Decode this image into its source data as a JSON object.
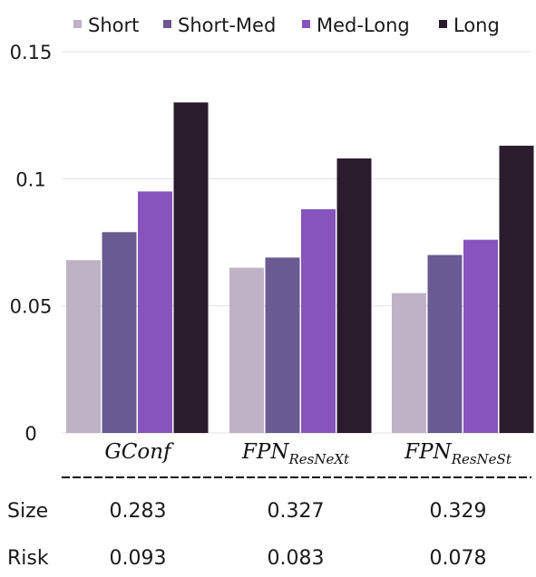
{
  "chart_data": {
    "type": "bar",
    "categories": [
      {
        "base": "GConf",
        "sub": ""
      },
      {
        "base": "FPN",
        "sub": "ResNeXt"
      },
      {
        "base": "FPN",
        "sub": "ResNeSt"
      }
    ],
    "series": [
      {
        "name": "Short",
        "color": "#c0b2c5",
        "values": [
          0.068,
          0.065,
          0.055
        ]
      },
      {
        "name": "Short-Med",
        "color": "#695b92",
        "values": [
          0.079,
          0.069,
          0.07
        ]
      },
      {
        "name": "Med-Long",
        "color": "#8754bd",
        "values": [
          0.095,
          0.088,
          0.076
        ]
      },
      {
        "name": "Long",
        "color": "#2a1b2d",
        "values": [
          0.13,
          0.108,
          0.113
        ]
      }
    ],
    "ylim": [
      0,
      0.15
    ],
    "yticks": [
      {
        "value": 0,
        "label": "0"
      },
      {
        "value": 0.05,
        "label": "0.05"
      },
      {
        "value": 0.1,
        "label": "0.1"
      },
      {
        "value": 0.15,
        "label": "0.15"
      }
    ],
    "legend_position": "top",
    "grid": true
  },
  "table": {
    "rows": [
      {
        "label": "Size",
        "values": [
          "0.283",
          "0.327",
          "0.329"
        ]
      },
      {
        "label": "Risk",
        "values": [
          "0.093",
          "0.083",
          "0.078"
        ]
      }
    ]
  }
}
